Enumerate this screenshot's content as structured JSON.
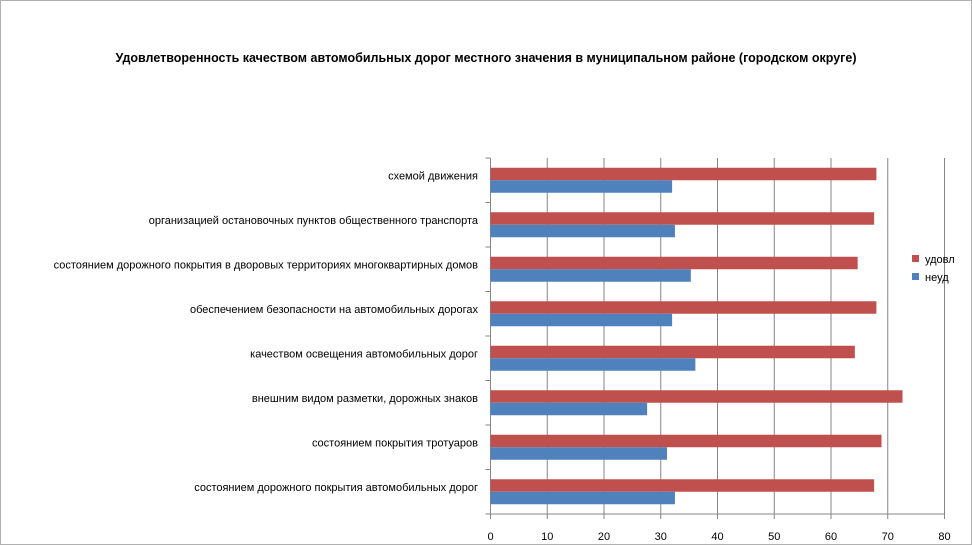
{
  "chart_data": {
    "type": "bar",
    "orientation": "horizontal",
    "title": "Удовлетворенность качеством автомобильных дорог местного значения в муниципальном районе (городском округе)",
    "xlabel": "",
    "ylabel": "",
    "xlim": [
      0,
      80
    ],
    "xticks": [
      "0",
      "10",
      "20",
      "30",
      "40",
      "50",
      "60",
      "70",
      "80"
    ],
    "grid": true,
    "legend_position": "right",
    "categories": [
      "схемой движения",
      "организацией остановочных пунктов общественного транспорта",
      "состоянием дорожного покрытия в дворовых территориях многоквартирных домов",
      "обеспечением безопасности на автомобильных дорогах",
      "качеством освещения автомобильных дорог",
      "внешним видом разметки, дорожных знаков",
      "состоянием покрытия тротуаров",
      "состоянием дорожного покрытия автомобильных дорог"
    ],
    "series": [
      {
        "name": "удовл",
        "color": "#c0504d",
        "values": [
          68.0,
          67.6,
          64.7,
          68.0,
          64.2,
          72.6,
          68.9,
          67.6
        ]
      },
      {
        "name": "неуд",
        "color": "#4f81bd",
        "values": [
          32.0,
          32.5,
          35.3,
          32.0,
          36.1,
          27.6,
          31.1,
          32.5
        ]
      }
    ]
  }
}
